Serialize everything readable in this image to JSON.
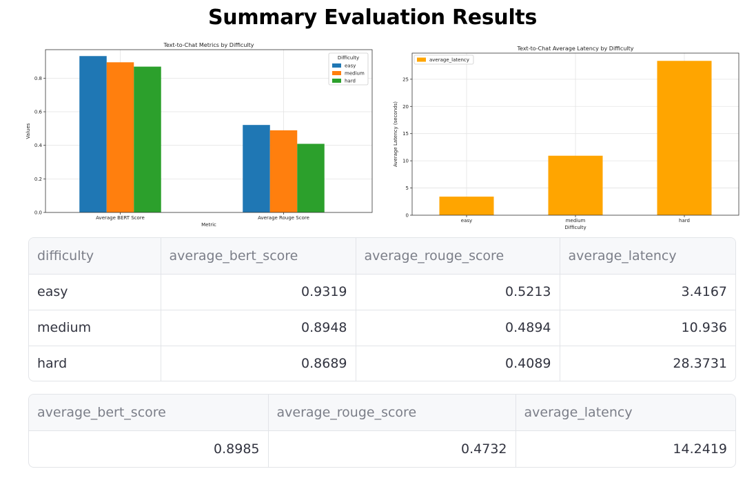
{
  "page": {
    "title": "Summary Evaluation Results"
  },
  "chart_data": [
    {
      "type": "bar",
      "title": "Text-to-Chat Metrics by Difficulty",
      "xlabel": "Metric",
      "ylabel": "Values",
      "categories": [
        "Average BERT Score",
        "Average Rouge Score"
      ],
      "series": [
        {
          "name": "easy",
          "color": "#1f77b4",
          "values": [
            0.9319,
            0.5213
          ]
        },
        {
          "name": "medium",
          "color": "#ff7f0e",
          "values": [
            0.8948,
            0.4894
          ]
        },
        {
          "name": "hard",
          "color": "#2ca02c",
          "values": [
            0.8689,
            0.4089
          ]
        }
      ],
      "ylim": [
        0,
        0.97
      ],
      "yticks": [
        "0.0",
        "0.2",
        "0.4",
        "0.6",
        "0.8"
      ],
      "grid": true,
      "legend": {
        "title": "Difficulty",
        "placement": "top-right"
      }
    },
    {
      "type": "bar",
      "title": "Text-to-Chat Average Latency by Difficulty",
      "xlabel": "Difficulty",
      "ylabel": "Average Latency (seconds)",
      "categories": [
        "easy",
        "medium",
        "hard"
      ],
      "series": [
        {
          "name": "average_latency",
          "color": "#ffa500",
          "values": [
            3.4167,
            10.936,
            28.3731
          ]
        }
      ],
      "ylim": [
        0,
        29.8
      ],
      "yticks": [
        "0",
        "5",
        "10",
        "15",
        "20",
        "25"
      ],
      "grid": true,
      "legend": {
        "placement": "top-left"
      }
    }
  ],
  "table_by_difficulty": {
    "columns": [
      "difficulty",
      "average_bert_score",
      "average_rouge_score",
      "average_latency"
    ],
    "rows": [
      [
        "easy",
        "0.9319",
        "0.5213",
        "3.4167"
      ],
      [
        "medium",
        "0.8948",
        "0.4894",
        "10.936"
      ],
      [
        "hard",
        "0.8689",
        "0.4089",
        "28.3731"
      ]
    ]
  },
  "table_overall": {
    "columns": [
      "average_bert_score",
      "average_rouge_score",
      "average_latency"
    ],
    "rows": [
      [
        "0.8985",
        "0.4732",
        "14.2419"
      ]
    ]
  }
}
